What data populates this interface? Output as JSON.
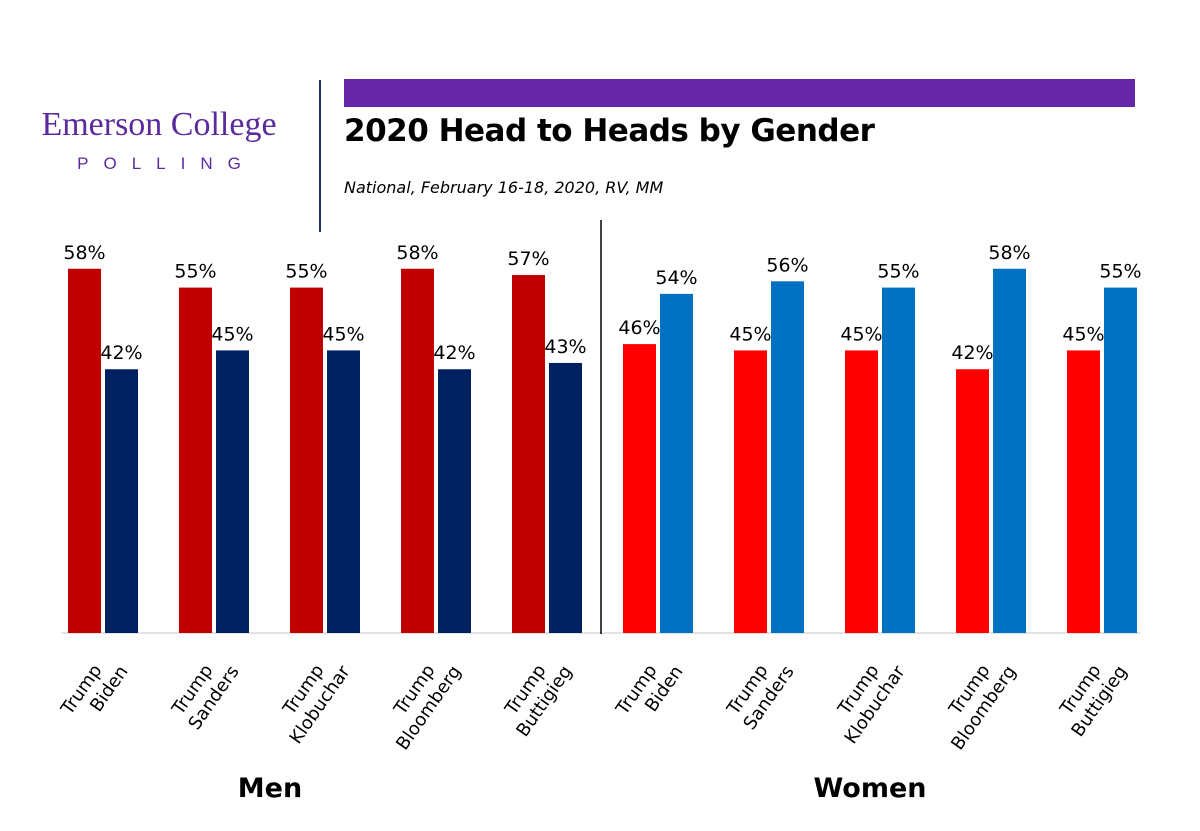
{
  "logo": {
    "main": "Emerson College",
    "sub": "POLLING"
  },
  "colors": {
    "brand_purple": "#6426a6",
    "men_trump": "#c00000",
    "men_democrat": "#002060",
    "women_trump": "#ff0000",
    "women_democrat": "#0070c0"
  },
  "chart_data": {
    "type": "bar",
    "title": "2020 Head to Heads by Gender",
    "subtitle": "National, February 16-18, 2020, RV, MM",
    "ylim": [
      0,
      100
    ],
    "grid": false,
    "legend": "none",
    "groups": [
      {
        "label": "Men",
        "categories": [
          [
            "Trump",
            "Biden"
          ],
          [
            "Trump",
            "Sanders"
          ],
          [
            "Trump",
            "Klobuchar"
          ],
          [
            "Trump",
            "Bloomberg"
          ],
          [
            "Trump",
            "Buttigieg"
          ]
        ],
        "series": [
          {
            "values": [
              58,
              55,
              55,
              58,
              57
            ],
            "labels": [
              "58%",
              "55%",
              "55%",
              "58%",
              "57%"
            ],
            "color": "#c00000"
          },
          {
            "values": [
              42,
              45,
              45,
              42,
              43
            ],
            "labels": [
              "42%",
              "45%",
              "45%",
              "42%",
              "43%"
            ],
            "color": "#002060"
          }
        ]
      },
      {
        "label": "Women",
        "categories": [
          [
            "Trump",
            "Biden"
          ],
          [
            "Trump",
            "Sanders"
          ],
          [
            "Trump",
            "Klobuchar"
          ],
          [
            "Trump",
            "Bloomberg"
          ],
          [
            "Trump",
            "Buttigieg"
          ]
        ],
        "series": [
          {
            "values": [
              46,
              45,
              45,
              42,
              45
            ],
            "labels": [
              "46%",
              "45%",
              "45%",
              "42%",
              "45%"
            ],
            "color": "#ff0000"
          },
          {
            "values": [
              54,
              56,
              55,
              58,
              55
            ],
            "labels": [
              "54%",
              "56%",
              "55%",
              "58%",
              "55%"
            ],
            "color": "#0070c0"
          }
        ]
      }
    ]
  }
}
